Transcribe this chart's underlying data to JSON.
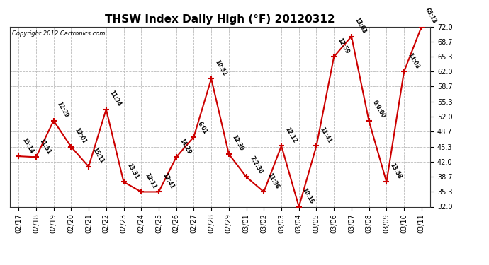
{
  "title": "THSW Index Daily High (°F) 20120312",
  "copyright": "Copyright 2012 Cartronics.com",
  "dates": [
    "02/17",
    "02/18",
    "02/19",
    "02/20",
    "02/21",
    "02/22",
    "02/23",
    "02/24",
    "02/25",
    "02/26",
    "02/27",
    "02/28",
    "02/29",
    "03/01",
    "03/02",
    "03/03",
    "03/04",
    "03/05",
    "03/06",
    "03/07",
    "03/08",
    "03/09",
    "03/10",
    "03/11"
  ],
  "values": [
    43.2,
    43.0,
    51.1,
    45.3,
    40.9,
    53.6,
    37.5,
    35.3,
    35.3,
    43.0,
    47.5,
    60.4,
    43.7,
    38.6,
    35.3,
    45.5,
    32.0,
    45.5,
    65.3,
    69.8,
    51.0,
    37.5,
    62.0,
    72.0
  ],
  "labels": [
    "15:14",
    "11:51",
    "12:29",
    "12:01",
    "15:11",
    "11:34",
    "13:31",
    "12:11",
    "12:41",
    "14:29",
    "6:01",
    "10:52",
    "12:30",
    "7:2:30",
    "11:36",
    "12:12",
    "10:16",
    "11:41",
    "12:59",
    "13:03",
    "0:0:00",
    "13:58",
    "14:03",
    "65:13"
  ],
  "line_color": "#cc0000",
  "marker_color": "#cc0000",
  "bg_color": "#ffffff",
  "plot_bg_color": "#ffffff",
  "grid_color": "#bbbbbb",
  "ylim": [
    32.0,
    72.0
  ],
  "yticks": [
    32.0,
    35.3,
    38.7,
    42.0,
    45.3,
    48.7,
    52.0,
    55.3,
    58.7,
    62.0,
    65.3,
    68.7,
    72.0
  ]
}
